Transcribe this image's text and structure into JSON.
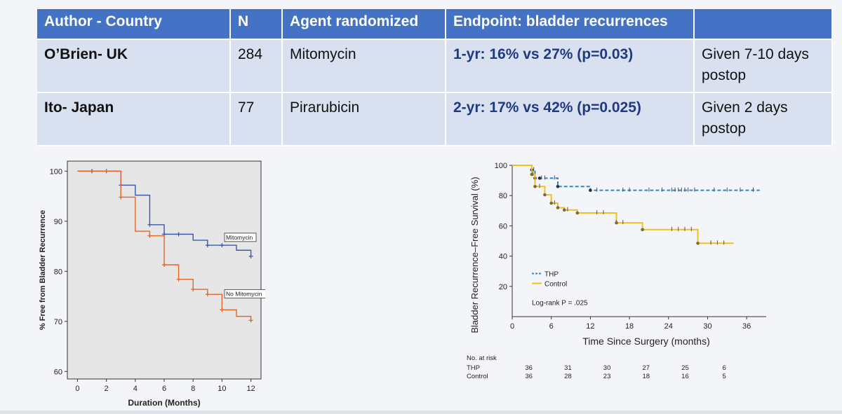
{
  "table": {
    "headers": [
      "Author - Country",
      "N",
      "Agent randomized",
      "Endpoint: bladder recurrences",
      ""
    ],
    "rows": [
      {
        "author": "O’Brien- UK",
        "n": "284",
        "agent": "Mitomycin",
        "endpoint": "1-yr: 16% vs 27% (p=0.03)",
        "note": "Given 7-10 days postop"
      },
      {
        "author": "Ito- Japan",
        "n": "77",
        "agent": "Pirarubicin",
        "endpoint": "2-yr: 17% vs 42% (p=0.025)",
        "note": "Given 2 days postop"
      }
    ]
  },
  "chart_data": [
    {
      "type": "line",
      "step": true,
      "xlabel": "Duration (Months)",
      "ylabel": "% Free from Bladder Recurrence",
      "xlim": [
        -0.7,
        12.7
      ],
      "ylim": [
        58.5,
        102
      ],
      "xticks": [
        "0",
        "2",
        "4",
        "6",
        "8",
        "10",
        "12"
      ],
      "yticks": [
        "60",
        "70",
        "80",
        "90",
        "100"
      ],
      "grid": false,
      "background": "#e6e6e6",
      "series": [
        {
          "name": "Mitomycin",
          "color": "#3a5aa8",
          "x": [
            0,
            3,
            4,
            5,
            6,
            8,
            9,
            10,
            11,
            12
          ],
          "y": [
            100,
            97.2,
            95.2,
            89.3,
            87.4,
            86.2,
            85.2,
            85.2,
            84.2,
            83.0
          ],
          "markers_x": [
            1,
            2,
            3,
            5,
            6,
            7,
            9,
            10,
            12
          ],
          "markers_y": [
            100,
            100,
            97.2,
            89.3,
            87.4,
            87.4,
            85.2,
            85.2,
            83.0
          ]
        },
        {
          "name": "No Mitomycin",
          "color": "#e0662a",
          "x": [
            0,
            3,
            4,
            5,
            6,
            7,
            8,
            9,
            10,
            11,
            12
          ],
          "y": [
            100,
            94.8,
            88.0,
            87.1,
            81.3,
            78.4,
            76.4,
            75.4,
            72.3,
            71.0,
            70.2
          ],
          "markers_x": [
            2,
            3,
            5,
            6,
            7,
            8,
            9,
            10,
            12
          ],
          "markers_y": [
            100,
            94.8,
            87.1,
            81.3,
            78.4,
            76.4,
            75.4,
            72.3,
            70.2
          ]
        }
      ]
    },
    {
      "type": "line",
      "step": true,
      "xlabel": "Time Since Surgery (months)",
      "ylabel": "Bladder Recurrence–Free Survival (%)",
      "xlim": [
        0,
        39
      ],
      "ylim": [
        0,
        100
      ],
      "xticks": [
        "0",
        "6",
        "12",
        "18",
        "24",
        "30",
        "36"
      ],
      "yticks": [
        "20",
        "40",
        "60",
        "80",
        "100"
      ],
      "grid": false,
      "legend": "bottom-left",
      "annotation": "Log-rank P = .025",
      "series": [
        {
          "name": "THP",
          "color": "#2f86c8",
          "dashed": true,
          "x": [
            0,
            3,
            3.5,
            4.2,
            7,
            12,
            38
          ],
          "y": [
            100,
            97,
            91.5,
            91.5,
            86,
            83.5,
            83.5
          ],
          "censor_x": [
            3.3,
            4.5,
            5,
            6.5,
            13,
            17,
            18,
            21,
            23,
            24.5,
            25,
            25.5,
            26,
            26.5,
            27,
            28,
            31,
            33,
            35,
            37
          ]
        },
        {
          "name": "Control",
          "color": "#f0c020",
          "dashed": false,
          "x": [
            0,
            3,
            3.5,
            5,
            6,
            7,
            8,
            10,
            16,
            20,
            28.5,
            34
          ],
          "y": [
            100,
            94,
            86,
            80.5,
            75,
            72,
            70.5,
            68.5,
            62,
            57.5,
            48.5,
            48.5
          ],
          "censor_x": [
            3.2,
            4.2,
            6.5,
            8.5,
            13,
            14,
            16,
            17,
            24.5,
            25.5,
            26.5,
            27.5,
            30.5,
            31.5,
            32.5
          ]
        }
      ],
      "risk_table": {
        "title": "No. at risk",
        "times": [
          6,
          12,
          18,
          24,
          30,
          36
        ],
        "rows": [
          {
            "label": "THP",
            "values": [
              "36",
              "31",
              "30",
              "27",
              "25",
              "6"
            ]
          },
          {
            "label": "Control",
            "values": [
              "36",
              "28",
              "23",
              "18",
              "16",
              "5"
            ]
          }
        ]
      }
    }
  ]
}
